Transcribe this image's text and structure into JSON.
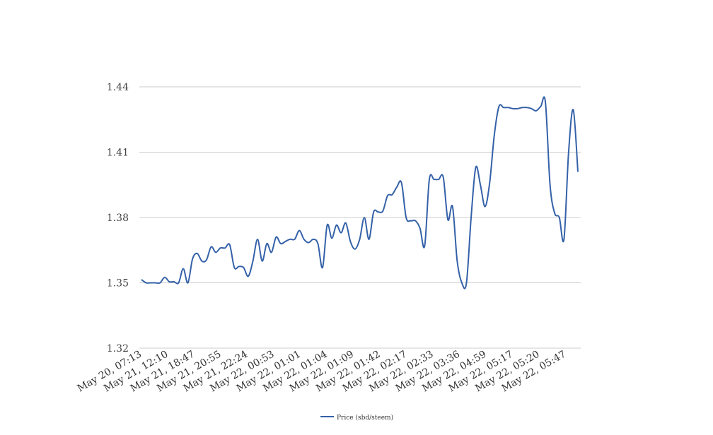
{
  "chart_data": {
    "type": "line",
    "title": "",
    "xlabel": "",
    "ylabel": "",
    "ylim": [
      1.32,
      1.44
    ],
    "yticks": [
      "1.32",
      "1.35",
      "1.38",
      "1.41",
      "1.44"
    ],
    "grid": true,
    "legend_position": "bottom",
    "color": "#3461a8",
    "x_tick_labels": [
      "May 20, 07:13",
      "May 21, 12:10",
      "May 21, 18:47",
      "May 21, 20:55",
      "May 21, 22:24",
      "May 22, 00:53",
      "May 22, 01:01",
      "May 22, 01:04",
      "May 22, 01:09",
      "May 22, 01:42",
      "May 22, 02:17",
      "May 22, 02:33",
      "May 22, 03:36",
      "May 22, 04:59",
      "May 22, 05:17",
      "May 22, 05:20",
      "May 22, 05:47"
    ],
    "series": [
      {
        "name": "Price (sbd/steem)",
        "values": [
          1.3515,
          1.35,
          1.35,
          1.35,
          1.35,
          1.3525,
          1.3505,
          1.3505,
          1.35,
          1.3565,
          1.35,
          1.361,
          1.3635,
          1.36,
          1.3605,
          1.3665,
          1.364,
          1.366,
          1.366,
          1.3675,
          1.357,
          1.3575,
          1.357,
          1.353,
          1.36,
          1.37,
          1.36,
          1.368,
          1.364,
          1.371,
          1.368,
          1.369,
          1.37,
          1.37,
          1.374,
          1.37,
          1.3685,
          1.37,
          1.368,
          1.357,
          1.3765,
          1.3705,
          1.3765,
          1.373,
          1.3775,
          1.369,
          1.3655,
          1.37,
          1.38,
          1.37,
          1.3825,
          1.3825,
          1.383,
          1.39,
          1.3905,
          1.394,
          1.396,
          1.38,
          1.3785,
          1.3785,
          1.375,
          1.367,
          1.3975,
          1.3975,
          1.3975,
          1.3985,
          1.379,
          1.385,
          1.36,
          1.35,
          1.35,
          1.38,
          1.403,
          1.395,
          1.385,
          1.396,
          1.418,
          1.431,
          1.4305,
          1.4305,
          1.43,
          1.43,
          1.4305,
          1.4305,
          1.43,
          1.429,
          1.431,
          1.433,
          1.395,
          1.382,
          1.38,
          1.37,
          1.41,
          1.4295,
          1.401
        ]
      }
    ]
  }
}
